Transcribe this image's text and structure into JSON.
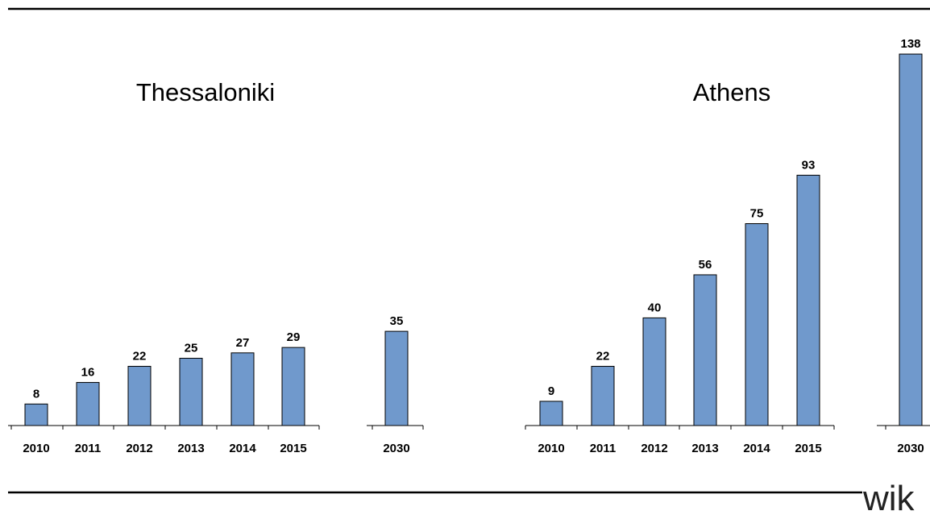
{
  "logo_text": "wik",
  "chart_data": [
    {
      "type": "bar",
      "title": "Thessaloniki",
      "categories": [
        "2010",
        "2011",
        "2012",
        "2013",
        "2014",
        "2015",
        "2030"
      ],
      "values": [
        8,
        16,
        22,
        25,
        27,
        29,
        35
      ],
      "color": "#7099cc"
    },
    {
      "type": "bar",
      "title": "Athens",
      "categories": [
        "2010",
        "2011",
        "2012",
        "2013",
        "2014",
        "2015",
        "2030"
      ],
      "values": [
        9,
        22,
        40,
        56,
        75,
        93,
        138
      ],
      "color": "#7099cc"
    }
  ]
}
